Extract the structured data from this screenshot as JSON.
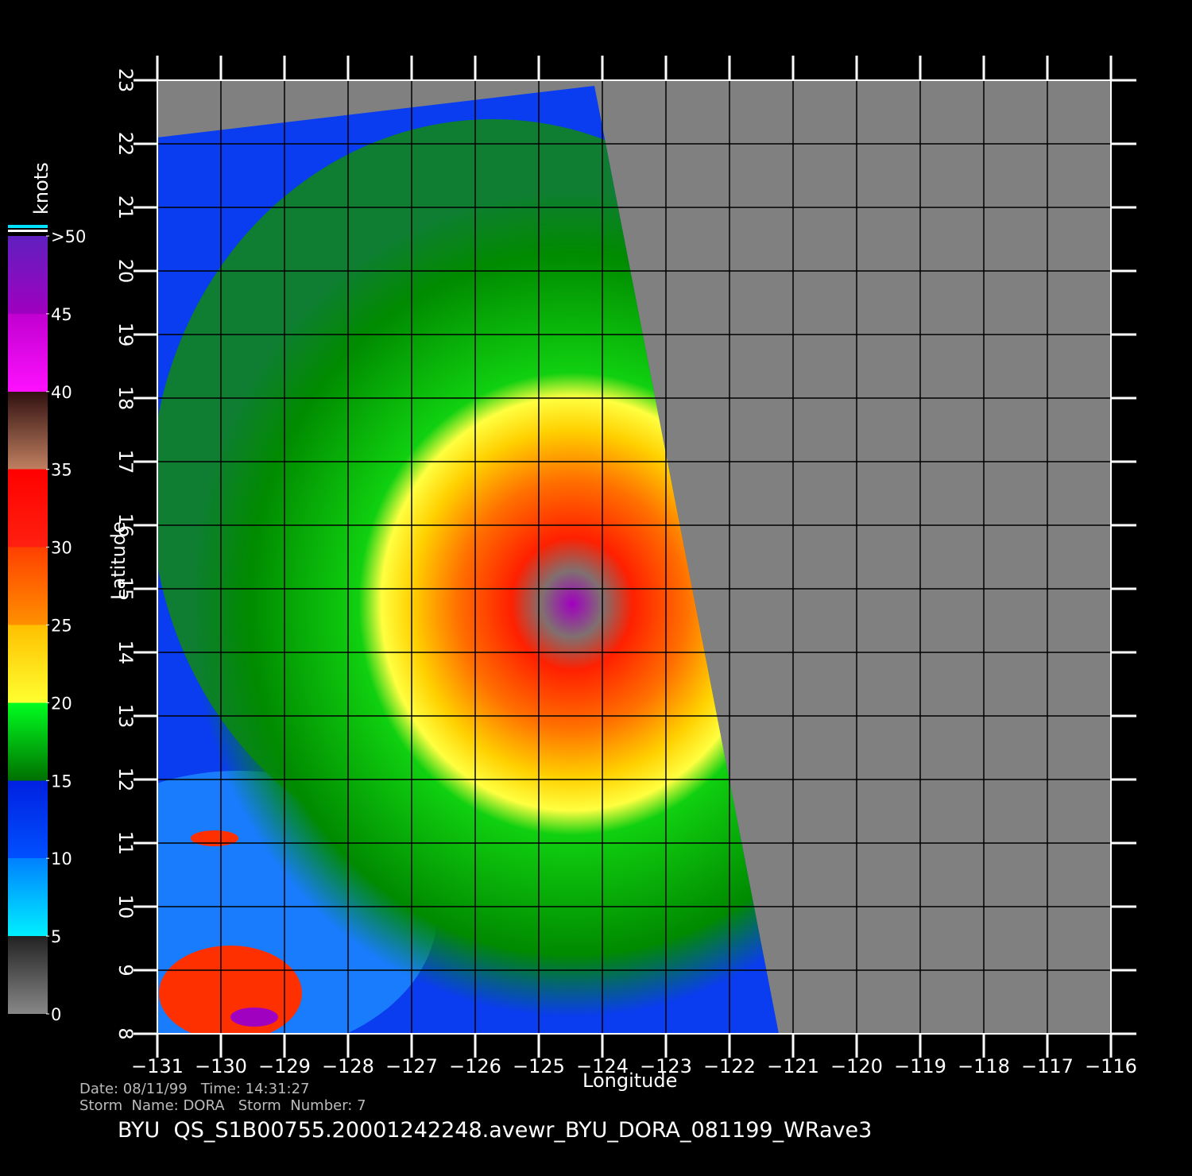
{
  "chart_data": {
    "type": "map",
    "xlabel": "Longitude",
    "ylabel": "Latitude",
    "xlim": [
      -131,
      -116
    ],
    "ylim": [
      8,
      23
    ],
    "xticks": [
      {
        "value": -131,
        "label": "−131"
      },
      {
        "value": -130,
        "label": "−130"
      },
      {
        "value": -129,
        "label": "−129"
      },
      {
        "value": -128,
        "label": "−128"
      },
      {
        "value": -127,
        "label": "−127"
      },
      {
        "value": -126,
        "label": "−126"
      },
      {
        "value": -125,
        "label": "−125"
      },
      {
        "value": -124,
        "label": "−124"
      },
      {
        "value": -123,
        "label": "−123"
      },
      {
        "value": -122,
        "label": "−122"
      },
      {
        "value": -121,
        "label": "−121"
      },
      {
        "value": -120,
        "label": "−120"
      },
      {
        "value": -119,
        "label": "−119"
      },
      {
        "value": -118,
        "label": "−118"
      },
      {
        "value": -117,
        "label": "−117"
      },
      {
        "value": -116,
        "label": "−116"
      }
    ],
    "yticks": [
      8,
      9,
      10,
      11,
      12,
      13,
      14,
      15,
      16,
      17,
      18,
      19,
      20,
      21,
      22,
      23
    ],
    "colorbar": {
      "title": "knots",
      "lim": [
        0,
        50
      ],
      "ticks": [
        0,
        5,
        10,
        15,
        20,
        25,
        30,
        35,
        40,
        45,
        {
          "value": 50,
          "label": ">50"
        }
      ]
    },
    "info": [
      "Date: 08/11/99   Time: 14:31:27",
      "Storm  Name: DORA   Storm  Number: 7"
    ],
    "title": "BYU  QS_S1B00755.20001242248.avewr_BYU_DORA_081199_WRave3"
  }
}
